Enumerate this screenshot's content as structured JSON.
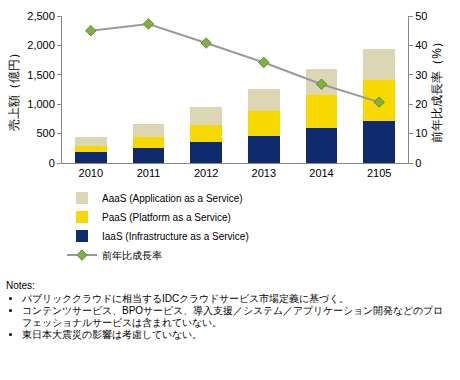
{
  "chart_data": {
    "type": "bar",
    "stacked": true,
    "grid": false,
    "legend": "bottom",
    "categories": [
      "2010",
      "2011",
      "2012",
      "2013",
      "2014",
      "2105"
    ],
    "series": [
      {
        "name": "AaaS (Application as a Service)",
        "color": "#ddd6b4",
        "values": [
          160,
          210,
          310,
          370,
          450,
          520
        ]
      },
      {
        "name": "PaaS (Platform as a Service)",
        "color": "#f7d900",
        "values": [
          110,
          190,
          290,
          430,
          560,
          700
        ]
      },
      {
        "name": "IaaS (Infrastructure as a Service)",
        "color": "#102a6e",
        "values": [
          180,
          260,
          350,
          460,
          590,
          720
        ]
      },
      {
        "name": "前年比成長率",
        "type": "line",
        "axis": "y2",
        "marker": "diamond",
        "color": "#7fb241",
        "values": [
          45,
          47.3,
          40.8,
          34.2,
          26.8,
          20.7
        ]
      }
    ],
    "y_label": "売上額（億円）",
    "y2_label": "前年比成長率（%）",
    "ylim": [
      0,
      2500
    ],
    "yticks": [
      0,
      500,
      {
        "value": 1000,
        "label": "1,000"
      },
      {
        "value": 1500,
        "label": "1,500"
      },
      {
        "value": 2000,
        "label": "2,000"
      },
      {
        "value": 2500,
        "label": "2,500"
      }
    ],
    "y2lim": [
      0,
      50
    ],
    "y2ticks": [
      0,
      10,
      20,
      30,
      40,
      50
    ],
    "notes_title": "Notes:",
    "notes": [
      "パブリッククラウドに相当するIDCクラウドサービス市場定義に基づく。",
      "コンテンツサービス、BPOサービス、導入支援／システム／アプリケーション開発などのプロフェッショナルサービスは含まれていない。",
      "東日本大震災の影響は考慮していない。"
    ]
  }
}
